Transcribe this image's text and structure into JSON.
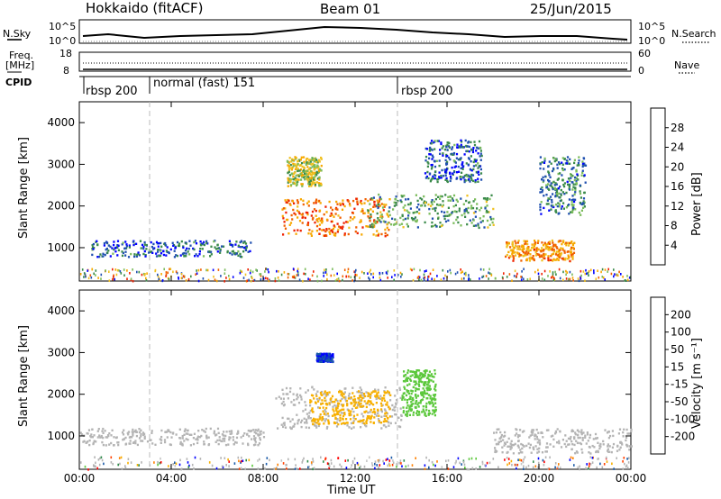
{
  "header": {
    "title": "Hokkaido (fitACF)",
    "beam": "Beam 01",
    "date": "25/Jun/2015"
  },
  "top_panels": {
    "nsky_label": "N.Sky",
    "nsky_ticks": [
      "10^5",
      "10^0"
    ],
    "nsearch_ticks": [
      "10^5",
      "10^0"
    ],
    "nsearch_label": "N.Search",
    "freq_label_1": "Freq.",
    "freq_label_2": "[MHz]",
    "freq_ticks": [
      "18",
      "8"
    ],
    "nave_ticks": [
      "60",
      "0"
    ],
    "nave_label": "Nave",
    "cpid_label": "CPID",
    "cpid_segments": [
      "rbsp 200",
      "normal (fast) 151",
      "rbsp 200"
    ]
  },
  "colors": {
    "power_scale": [
      "#0000ff",
      "#2050b0",
      "#3a8a4a",
      "#7cbc5c",
      "#f0c020",
      "#f7a800",
      "#f06000",
      "#ee2000"
    ],
    "velocity_scale": [
      "#ff0000",
      "#ff4000",
      "#ff8000",
      "#f8b000",
      "#c4c4c4",
      "#c4c4c4",
      "#5cc83c",
      "#2f8b4b",
      "#1a5aa8",
      "#0000ff"
    ],
    "ground_scatter": "#b4b4b4"
  },
  "chart_data": [
    {
      "type": "heatmap",
      "panel": "power",
      "ylabel": "Slant Range [km]",
      "yticks": [
        "1000",
        "2000",
        "3000",
        "4000"
      ],
      "ylim": [
        200,
        4500
      ],
      "xticks": [
        "00:00",
        "04:00",
        "08:00",
        "12:00",
        "16:00",
        "20:00",
        "00:00"
      ],
      "colorbar_label": "Power [dB]",
      "colorbar_ticks": [
        "4",
        "8",
        "12",
        "16",
        "20",
        "24",
        "28"
      ],
      "scatter_regions": [
        {
          "t0": 0.5,
          "t1": 7.5,
          "r0": 800,
          "r1": 1200,
          "level": 8
        },
        {
          "t0": 8.8,
          "t1": 13.5,
          "r0": 1300,
          "r1": 2200,
          "level": 24
        },
        {
          "t0": 12.5,
          "t1": 18,
          "r0": 1500,
          "r1": 2300,
          "level": 12
        },
        {
          "t0": 18.5,
          "t1": 21.5,
          "r0": 700,
          "r1": 1200,
          "level": 22
        },
        {
          "t0": 9,
          "t1": 10.5,
          "r0": 2500,
          "r1": 3200,
          "level": 16
        },
        {
          "t0": 15,
          "t1": 17.5,
          "r0": 2600,
          "r1": 3600,
          "level": 8
        },
        {
          "t0": 20,
          "t1": 22,
          "r0": 1800,
          "r1": 3200,
          "level": 10
        }
      ]
    },
    {
      "type": "heatmap",
      "panel": "velocity",
      "ylabel": "Slant Range [km]",
      "xlabel": "Time UT",
      "yticks": [
        "1000",
        "2000",
        "3000",
        "4000"
      ],
      "ylim": [
        200,
        4500
      ],
      "xticks": [
        "00:00",
        "04:00",
        "08:00",
        "12:00",
        "16:00",
        "20:00",
        "00:00"
      ],
      "colorbar_label": "Velocity [m s⁻¹]",
      "colorbar_ticks": [
        "-200",
        "-100",
        "-50",
        "-15",
        "15",
        "50",
        "100",
        "200"
      ],
      "scatter_regions": [
        {
          "t0": 0,
          "t1": 8,
          "r0": 800,
          "r1": 1200,
          "velocity": 0
        },
        {
          "t0": 8.5,
          "t1": 14,
          "r0": 1200,
          "r1": 2200,
          "velocity": 0
        },
        {
          "t0": 10,
          "t1": 13.5,
          "r0": 1300,
          "r1": 2100,
          "velocity": -40
        },
        {
          "t0": 14,
          "t1": 15.5,
          "r0": 1500,
          "r1": 2600,
          "velocity": 30
        },
        {
          "t0": 18,
          "t1": 24,
          "r0": 600,
          "r1": 1200,
          "velocity": 0
        },
        {
          "t0": 10.3,
          "t1": 11,
          "r0": 2800,
          "r1": 3000,
          "velocity": 200
        }
      ]
    }
  ]
}
